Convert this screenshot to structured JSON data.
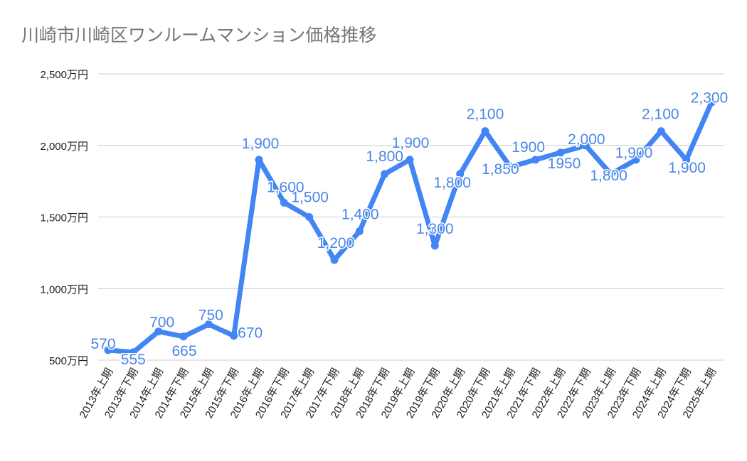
{
  "chart_data": {
    "type": "line",
    "title": "川崎市川崎区ワンルームマンション価格推移",
    "xlabel": "",
    "ylabel": "",
    "ylim": [
      500,
      2500
    ],
    "yticks": [
      "500万円",
      "1,000万円",
      "1,500万円",
      "2,000万円",
      "2,500万円"
    ],
    "ytick_values": [
      500,
      1000,
      1500,
      2000,
      2500
    ],
    "grid": true,
    "line_color": "#4285F4",
    "label_color": "#4A86E8",
    "categories": [
      "2013年上期",
      "2013年下期",
      "2014年上期",
      "2014年下期",
      "2015年上期",
      "2015年下期",
      "2016年上期",
      "2016年下期",
      "2017年上期",
      "2017年下期",
      "2018年上期",
      "2018年下期",
      "2019年上期",
      "2019年下期",
      "2020年上期",
      "2020年下期",
      "2021年上期",
      "2021年下期",
      "2022年上期",
      "2022年下期",
      "2023年上期",
      "2023年下期",
      "2024年上期",
      "2024年下期",
      "2025年上期"
    ],
    "values": [
      570,
      555,
      700,
      665,
      750,
      670,
      1900,
      1600,
      1500,
      1200,
      1400,
      1800,
      1900,
      1300,
      1800,
      2100,
      1850,
      1900,
      1950,
      2000,
      1800,
      1900,
      2100,
      1900,
      2300
    ],
    "data_labels": [
      "570",
      "555",
      "700",
      "665",
      "750",
      "670",
      "1,900",
      "1,600",
      "1,500",
      "1,200",
      "1,400",
      "1,800",
      "1,900",
      "1,300",
      "1,800",
      "2,100",
      "1,850",
      "1900",
      "1950",
      "2,000",
      "1,800",
      "1,900",
      "2,100",
      "1,900",
      "2,300"
    ]
  }
}
